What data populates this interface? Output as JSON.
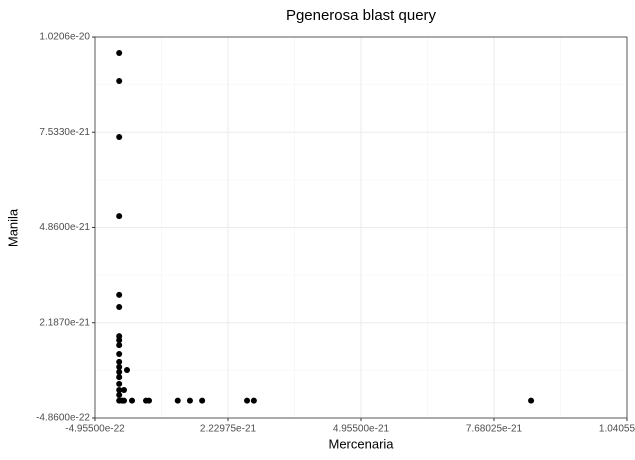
{
  "chart_data": {
    "type": "scatter",
    "title": "Pgenerosa blast query",
    "x_label": "Mercenaria",
    "y_label": "Manila",
    "x": [
      0,
      0,
      0,
      0,
      0,
      0,
      0,
      0,
      0,
      0,
      0,
      0,
      0,
      0,
      0,
      0,
      0,
      0,
      1.6e-22,
      5.8e-23,
      9.9e-23,
      2.63e-22,
      5.5e-22,
      6.11e-22,
      1.2e-21,
      1.45e-21,
      1.7e-21,
      2.62e-21,
      2.76e-21,
      8.44e-21,
      9.9e-23
    ],
    "values": [
      9.756e-21,
      8.97e-21,
      7.4e-21,
      5.18e-21,
      2.97e-21,
      2.63e-21,
      1.81e-21,
      1.7e-21,
      1.56e-21,
      1.31e-21,
      1.09e-21,
      9.45e-22,
      8.05e-22,
      6.6e-22,
      4.7e-22,
      3e-22,
      1.6e-22,
      0,
      8.6e-22,
      0,
      0,
      0,
      0,
      0,
      0,
      0,
      0,
      0,
      0,
      0,
      3e-22
    ],
    "color": "#000000",
    "xlim": [
      -4.955e-22,
      1.04055e-20
    ],
    "xticks": [
      {
        "value": -4.955e-22,
        "label": "-4.95500e-22"
      },
      {
        "value": 2.22975e-21,
        "label": "2.22975e-21"
      },
      {
        "value": 4.955e-21,
        "label": "4.95500e-21"
      },
      {
        "value": 7.68025e-21,
        "label": "7.68025e-21"
      },
      {
        "value": 1.04055e-20,
        "label": "1.04055e-20"
      }
    ],
    "ylim": [
      -4.86e-22,
      1.0206e-20
    ],
    "yticks": [
      {
        "value": -4.86e-22,
        "label": "-4.8600e-22"
      },
      {
        "value": 2.187e-21,
        "label": "2.1870e-21"
      },
      {
        "value": 4.86e-21,
        "label": "4.8600e-21"
      },
      {
        "value": 7.533e-21,
        "label": "7.5330e-21"
      },
      {
        "value": 1.0206e-20,
        "label": "1.0206e-20"
      }
    ],
    "grid": true
  }
}
